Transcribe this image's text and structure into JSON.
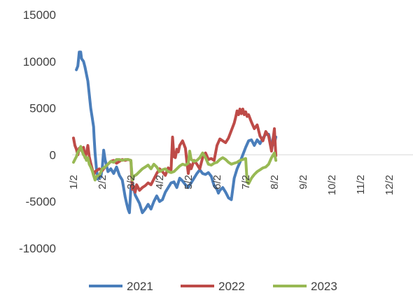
{
  "chart_data": {
    "type": "line",
    "title": "",
    "xlabel": "",
    "ylabel": "",
    "x_ticks": [
      "1/2",
      "2/2",
      "3/2",
      "4/2",
      "5/2",
      "6/2",
      "7/2",
      "8/2",
      "9/2",
      "10/2",
      "11/2",
      "12/2"
    ],
    "ylim": [
      -10000,
      15000
    ],
    "y_ticks": [
      15000,
      10000,
      5000,
      0,
      -5000,
      -10000
    ],
    "grid": false,
    "legend_position": "bottom",
    "series": [
      {
        "name": "2021",
        "color": "#4a7ebb",
        "points": [
          [
            0.1,
            9100
          ],
          [
            0.15,
            9500
          ],
          [
            0.2,
            11000
          ],
          [
            0.25,
            11000
          ],
          [
            0.28,
            10300
          ],
          [
            0.35,
            10000
          ],
          [
            0.4,
            9400
          ],
          [
            0.5,
            7900
          ],
          [
            0.55,
            6500
          ],
          [
            0.6,
            5000
          ],
          [
            0.65,
            4000
          ],
          [
            0.7,
            3000
          ],
          [
            0.72,
            1800
          ],
          [
            0.75,
            200
          ],
          [
            0.8,
            -1500
          ],
          [
            0.85,
            -2600
          ],
          [
            0.9,
            -2200
          ],
          [
            0.95,
            -2400
          ],
          [
            1.0,
            -1500
          ],
          [
            1.05,
            500
          ],
          [
            1.1,
            -500
          ],
          [
            1.2,
            -1800
          ],
          [
            1.3,
            -1500
          ],
          [
            1.4,
            -2000
          ],
          [
            1.5,
            -1300
          ],
          [
            1.6,
            -2200
          ],
          [
            1.7,
            -2700
          ],
          [
            1.8,
            -4500
          ],
          [
            1.85,
            -5200
          ],
          [
            1.9,
            -5800
          ],
          [
            1.95,
            -6200
          ],
          [
            2.0,
            -3500
          ],
          [
            2.05,
            -3000
          ],
          [
            2.15,
            -4300
          ],
          [
            2.3,
            -5200
          ],
          [
            2.4,
            -6200
          ],
          [
            2.5,
            -5800
          ],
          [
            2.6,
            -5300
          ],
          [
            2.7,
            -5800
          ],
          [
            2.8,
            -5000
          ],
          [
            2.9,
            -4400
          ],
          [
            3.0,
            -5000
          ],
          [
            3.1,
            -4800
          ],
          [
            3.2,
            -4000
          ],
          [
            3.3,
            -3500
          ],
          [
            3.4,
            -3000
          ],
          [
            3.5,
            -2900
          ],
          [
            3.6,
            -3500
          ],
          [
            3.7,
            -2500
          ],
          [
            3.8,
            -2800
          ],
          [
            3.9,
            -3200
          ],
          [
            4.0,
            -3500
          ],
          [
            4.1,
            -3000
          ],
          [
            4.2,
            -2500
          ],
          [
            4.3,
            -2000
          ],
          [
            4.4,
            -1600
          ],
          [
            4.5,
            -2000
          ],
          [
            4.6,
            -2100
          ],
          [
            4.7,
            -1900
          ],
          [
            4.8,
            -2300
          ],
          [
            4.9,
            -3300
          ],
          [
            5.0,
            -3700
          ],
          [
            5.05,
            -4100
          ],
          [
            5.1,
            -3800
          ],
          [
            5.2,
            -3500
          ],
          [
            5.3,
            -4000
          ],
          [
            5.4,
            -4600
          ],
          [
            5.5,
            -4800
          ],
          [
            5.6,
            -2500
          ],
          [
            5.7,
            -1500
          ],
          [
            5.8,
            -800
          ],
          [
            5.9,
            0
          ],
          [
            6.0,
            800
          ],
          [
            6.1,
            1500
          ],
          [
            6.2,
            1600
          ],
          [
            6.3,
            1000
          ],
          [
            6.4,
            1600
          ],
          [
            6.5,
            1200
          ],
          [
            6.6,
            1800
          ],
          [
            6.7,
            2200
          ],
          [
            6.8,
            2200
          ],
          [
            6.9,
            900
          ],
          [
            7.0,
            1200
          ],
          [
            7.05,
            1900
          ]
        ]
      },
      {
        "name": "2022",
        "color": "#be4b48",
        "points": [
          [
            0.0,
            1800
          ],
          [
            0.05,
            1000
          ],
          [
            0.1,
            600
          ],
          [
            0.15,
            0
          ],
          [
            0.2,
            700
          ],
          [
            0.25,
            500
          ],
          [
            0.3,
            600
          ],
          [
            0.35,
            800
          ],
          [
            0.4,
            -300
          ],
          [
            0.45,
            200
          ],
          [
            0.5,
            1000
          ],
          [
            0.55,
            -200
          ],
          [
            0.6,
            -900
          ],
          [
            0.65,
            -1500
          ],
          [
            0.7,
            -2200
          ],
          [
            0.75,
            -1800
          ],
          [
            0.8,
            -1700
          ],
          [
            0.9,
            -1500
          ],
          [
            1.0,
            -1700
          ],
          [
            1.1,
            -1300
          ],
          [
            1.2,
            -1000
          ],
          [
            1.3,
            -700
          ],
          [
            1.4,
            -600
          ],
          [
            1.5,
            -900
          ],
          [
            1.6,
            -700
          ],
          [
            1.7,
            -500
          ],
          [
            1.8,
            -600
          ],
          [
            1.9,
            -500
          ],
          [
            2.0,
            -600
          ],
          [
            2.05,
            -3700
          ],
          [
            2.1,
            -3400
          ],
          [
            2.15,
            -4000
          ],
          [
            2.2,
            -3200
          ],
          [
            2.3,
            -3800
          ],
          [
            2.4,
            -3500
          ],
          [
            2.5,
            -3300
          ],
          [
            2.6,
            -3000
          ],
          [
            2.7,
            -3200
          ],
          [
            2.8,
            -2600
          ],
          [
            2.9,
            -2000
          ],
          [
            3.0,
            -1500
          ],
          [
            3.1,
            -1800
          ],
          [
            3.2,
            -2200
          ],
          [
            3.3,
            -1400
          ],
          [
            3.4,
            -1600
          ],
          [
            3.45,
            1900
          ],
          [
            3.5,
            -200
          ],
          [
            3.55,
            -300
          ],
          [
            3.6,
            600
          ],
          [
            3.65,
            300
          ],
          [
            3.7,
            1000
          ],
          [
            3.8,
            1500
          ],
          [
            3.9,
            700
          ],
          [
            3.95,
            -800
          ],
          [
            4.0,
            -2000
          ],
          [
            4.05,
            -1000
          ],
          [
            4.1,
            -1500
          ],
          [
            4.2,
            -600
          ],
          [
            4.3,
            -1000
          ],
          [
            4.4,
            -1500
          ],
          [
            4.5,
            -300
          ],
          [
            4.6,
            200
          ],
          [
            4.7,
            -500
          ],
          [
            4.8,
            -400
          ],
          [
            4.9,
            -600
          ],
          [
            5.0,
            1000
          ],
          [
            5.1,
            1700
          ],
          [
            5.2,
            1500
          ],
          [
            5.3,
            1300
          ],
          [
            5.4,
            1800
          ],
          [
            5.5,
            2600
          ],
          [
            5.6,
            3400
          ],
          [
            5.65,
            4000
          ],
          [
            5.7,
            4700
          ],
          [
            5.75,
            4300
          ],
          [
            5.8,
            4900
          ],
          [
            5.85,
            4400
          ],
          [
            5.9,
            4900
          ],
          [
            5.95,
            4300
          ],
          [
            6.0,
            4600
          ],
          [
            6.05,
            4100
          ],
          [
            6.1,
            4300
          ],
          [
            6.2,
            3500
          ],
          [
            6.3,
            2800
          ],
          [
            6.4,
            3200
          ],
          [
            6.5,
            2000
          ],
          [
            6.6,
            1500
          ],
          [
            6.7,
            2500
          ],
          [
            6.8,
            2000
          ],
          [
            6.9,
            400
          ],
          [
            7.0,
            2800
          ],
          [
            7.05,
            -100
          ]
        ]
      },
      {
        "name": "2023",
        "color": "#98b954",
        "points": [
          [
            0.0,
            -800
          ],
          [
            0.05,
            -500
          ],
          [
            0.1,
            -200
          ],
          [
            0.15,
            300
          ],
          [
            0.2,
            500
          ],
          [
            0.25,
            900
          ],
          [
            0.3,
            400
          ],
          [
            0.35,
            0
          ],
          [
            0.4,
            -200
          ],
          [
            0.45,
            -600
          ],
          [
            0.5,
            -300
          ],
          [
            0.55,
            -1000
          ],
          [
            0.6,
            -1300
          ],
          [
            0.65,
            -1700
          ],
          [
            0.7,
            -2200
          ],
          [
            0.75,
            -2700
          ],
          [
            0.8,
            -2300
          ],
          [
            0.9,
            -2200
          ],
          [
            1.0,
            -1500
          ],
          [
            1.1,
            -1300
          ],
          [
            1.2,
            -1000
          ],
          [
            1.3,
            -700
          ],
          [
            1.4,
            -800
          ],
          [
            1.5,
            -500
          ],
          [
            1.6,
            -500
          ],
          [
            1.7,
            -600
          ],
          [
            1.8,
            -500
          ],
          [
            1.9,
            -500
          ],
          [
            2.0,
            -600
          ],
          [
            2.05,
            -2700
          ],
          [
            2.1,
            -2300
          ],
          [
            2.2,
            -2100
          ],
          [
            2.3,
            -1800
          ],
          [
            2.4,
            -1500
          ],
          [
            2.5,
            -1300
          ],
          [
            2.6,
            -1100
          ],
          [
            2.7,
            -1500
          ],
          [
            2.8,
            -1000
          ],
          [
            2.9,
            -1300
          ],
          [
            3.0,
            -1800
          ],
          [
            3.1,
            -1600
          ],
          [
            3.2,
            -1500
          ],
          [
            3.3,
            -1800
          ],
          [
            3.4,
            -1900
          ],
          [
            3.5,
            -1800
          ],
          [
            3.6,
            -1500
          ],
          [
            3.7,
            -1200
          ],
          [
            3.8,
            -1000
          ],
          [
            3.9,
            -1100
          ],
          [
            4.0,
            -900
          ],
          [
            4.05,
            400
          ],
          [
            4.1,
            -500
          ],
          [
            4.2,
            -700
          ],
          [
            4.3,
            -600
          ],
          [
            4.4,
            -300
          ],
          [
            4.5,
            200
          ],
          [
            4.6,
            -300
          ],
          [
            4.7,
            -1000
          ],
          [
            4.8,
            -1100
          ],
          [
            4.9,
            -900
          ],
          [
            5.0,
            -800
          ],
          [
            5.1,
            -500
          ],
          [
            5.2,
            -300
          ],
          [
            5.3,
            -500
          ],
          [
            5.4,
            -800
          ],
          [
            5.5,
            -1000
          ],
          [
            5.6,
            -900
          ],
          [
            5.7,
            -800
          ],
          [
            5.8,
            -600
          ],
          [
            5.9,
            -500
          ],
          [
            6.0,
            -400
          ],
          [
            6.05,
            -2900
          ],
          [
            6.1,
            -3100
          ],
          [
            6.2,
            -2500
          ],
          [
            6.3,
            -2100
          ],
          [
            6.4,
            -1800
          ],
          [
            6.5,
            -1600
          ],
          [
            6.6,
            -1400
          ],
          [
            6.7,
            -1300
          ],
          [
            6.8,
            -1000
          ],
          [
            6.9,
            -300
          ],
          [
            7.0,
            200
          ],
          [
            7.05,
            -600
          ]
        ]
      }
    ]
  }
}
